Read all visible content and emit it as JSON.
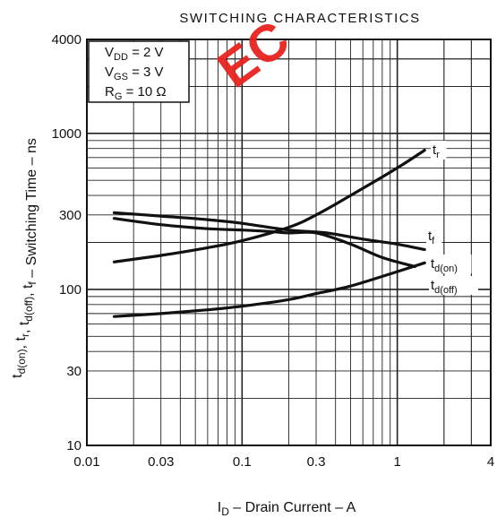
{
  "chart_data": {
    "type": "line",
    "title": "SWITCHING CHARACTERISTICS",
    "xlabel": {
      "main": "I",
      "sub": "D",
      "rest": " – Drain Current – A"
    },
    "ylabel": {
      "parts": [
        {
          "t": "t"
        },
        {
          "t": "d(on)",
          "sub": true
        },
        {
          "t": ", t"
        },
        {
          "t": "r",
          "sub": true
        },
        {
          "t": ", t"
        },
        {
          "t": "d(off)",
          "sub": true
        },
        {
          "t": ", t"
        },
        {
          "t": "f",
          "sub": true
        },
        {
          "t": " – Switching Time – ns"
        }
      ]
    },
    "xscale": "log",
    "yscale": "log",
    "xlim": [
      0.01,
      4
    ],
    "ylim": [
      10,
      4000
    ],
    "grid": true,
    "xticks": [
      {
        "value": 0.01,
        "label": "0.01"
      },
      {
        "value": 0.03,
        "label": "0.03"
      },
      {
        "value": 0.1,
        "label": "0.1"
      },
      {
        "value": 0.3,
        "label": "0.3"
      },
      {
        "value": 1,
        "label": "1"
      },
      {
        "value": 4,
        "label": "4"
      }
    ],
    "yticks": [
      {
        "value": 4000,
        "label": "4000"
      },
      {
        "value": 1000,
        "label": "1000"
      },
      {
        "value": 300,
        "label": "300"
      },
      {
        "value": 100,
        "label": "100"
      },
      {
        "value": 30,
        "label": "30"
      },
      {
        "value": 10,
        "label": "10"
      }
    ],
    "conditions": [
      {
        "main": "V",
        "sub": "DD",
        "rest": " = 2 V"
      },
      {
        "main": "V",
        "sub": "GS",
        "rest": " = 3 V"
      },
      {
        "main": "R",
        "sub": "G",
        "rest": " = 10 Ω"
      }
    ],
    "series": [
      {
        "name": "t_r",
        "label_main": "t",
        "label_sub": "r",
        "x": [
          0.015,
          0.03,
          0.06,
          0.1,
          0.2,
          0.3,
          0.5,
          1.0,
          1.5
        ],
        "y": [
          150,
          165,
          185,
          205,
          250,
          300,
          400,
          600,
          780
        ]
      },
      {
        "name": "t_f",
        "label_main": "t",
        "label_sub": "f",
        "x": [
          0.015,
          0.03,
          0.06,
          0.1,
          0.2,
          0.35,
          0.6,
          1.0,
          1.5
        ],
        "y": [
          310,
          295,
          280,
          265,
          240,
          230,
          210,
          195,
          180
        ]
      },
      {
        "name": "t_d(on)",
        "label_main": "t",
        "label_sub": "d(on)",
        "x": [
          0.015,
          0.03,
          0.06,
          0.1,
          0.15,
          0.2,
          0.3,
          0.5,
          0.8,
          1.3
        ],
        "y": [
          285,
          260,
          245,
          240,
          235,
          230,
          230,
          195,
          160,
          140
        ]
      },
      {
        "name": "t_d(off)",
        "label_main": "t",
        "label_sub": "d(off)",
        "x": [
          0.015,
          0.03,
          0.06,
          0.1,
          0.2,
          0.3,
          0.5,
          1.0,
          1.5
        ],
        "y": [
          67,
          70,
          74,
          78,
          86,
          94,
          105,
          130,
          148
        ]
      }
    ]
  },
  "watermark": "EC"
}
